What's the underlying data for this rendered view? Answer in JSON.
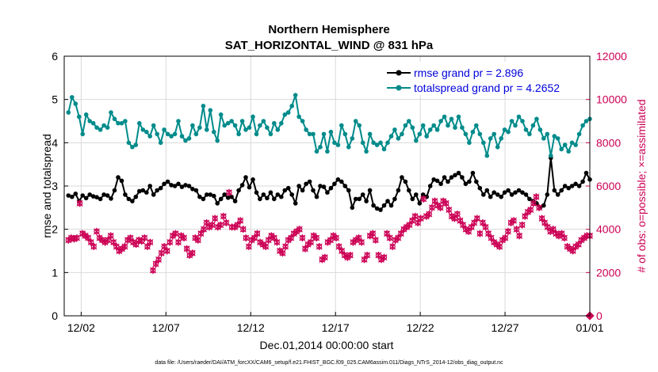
{
  "chart_data": {
    "type": "line",
    "title": "Northern Hemisphere",
    "subtitle": "SAT_HORIZONTAL_WIND @ 831 hPa",
    "xlabel": "Dec.01,2014 00:00:00 start",
    "ylabel": "rmse and totalspread",
    "ylabel_right": "# of obs: o=possible; ×=assimilated",
    "footnote": "data file: /Users/raeder/DAI/ATM_forcXX/CAM6_setup/f.e21.FHIST_BGC.f09_025.CAM6assim.011/Diags_NTrS_2014-12/obs_diag_output.nc",
    "x_ticks": [
      {
        "pos": 1,
        "label": "12/02"
      },
      {
        "pos": 6,
        "label": "12/07"
      },
      {
        "pos": 11,
        "label": "12/12"
      },
      {
        "pos": 16,
        "label": "12/17"
      },
      {
        "pos": 21,
        "label": "12/22"
      },
      {
        "pos": 26,
        "label": "12/27"
      },
      {
        "pos": 31,
        "label": "01/01"
      }
    ],
    "xlim": [
      0,
      31
    ],
    "ylim": [
      0,
      6
    ],
    "y_ticks": [
      "0",
      "1",
      "2",
      "3",
      "4",
      "5",
      "6"
    ],
    "ylim_right": [
      0,
      12000
    ],
    "y_ticks_right": [
      "0",
      "2000",
      "4000",
      "6000",
      "8000",
      "10000",
      "12000"
    ],
    "legend_position": "top-right",
    "series": [
      {
        "name": "rmse grand pr = 2.896",
        "color": "#000000",
        "axis": "left",
        "values": [
          2.78,
          2.75,
          2.82,
          2.65,
          2.78,
          2.72,
          2.8,
          2.76,
          2.74,
          2.7,
          2.8,
          2.78,
          2.71,
          2.9,
          3.2,
          3.12,
          2.8,
          2.7,
          2.65,
          2.75,
          2.88,
          2.9,
          2.85,
          3.0,
          2.8,
          2.9,
          2.95,
          3.05,
          3.1,
          3.02,
          3.0,
          3.05,
          2.98,
          3.02,
          3.0,
          2.93,
          2.9,
          2.75,
          2.7,
          2.8,
          2.8,
          2.77,
          2.6,
          2.7,
          2.8,
          2.73,
          2.75,
          2.65,
          2.9,
          3.02,
          3.2,
          2.97,
          3.15,
          2.85,
          2.7,
          2.8,
          2.72,
          2.85,
          2.7,
          2.8,
          2.75,
          2.9,
          2.95,
          2.8,
          2.6,
          3.0,
          2.9,
          3.05,
          3.1,
          2.9,
          2.75,
          3.0,
          2.98,
          2.85,
          2.95,
          3.05,
          3.15,
          3.1,
          3.0,
          2.9,
          2.5,
          2.7,
          2.7,
          2.8,
          2.65,
          2.9,
          2.55,
          2.48,
          2.45,
          2.55,
          2.65,
          2.55,
          2.7,
          2.9,
          3.2,
          3.1,
          2.9,
          2.7,
          2.8,
          2.6,
          2.8,
          2.75,
          3.0,
          3.15,
          3.12,
          3.05,
          3.2,
          3.1,
          3.2,
          3.25,
          3.3,
          3.2,
          3.05,
          3.1,
          3.3,
          3.1,
          2.95,
          2.8,
          2.9,
          2.75,
          2.85,
          2.8,
          2.75,
          2.85,
          2.9,
          2.8,
          2.85,
          2.9,
          2.85,
          2.8,
          2.7,
          2.65,
          2.6,
          2.5,
          2.55,
          2.8,
          3.65,
          2.9,
          2.8,
          2.9,
          3.0,
          2.95,
          3.0,
          3.05,
          3.0,
          3.1,
          3.3,
          3.15
        ]
      },
      {
        "name": "totalspread grand pr = 4.2652",
        "color": "#008b8b",
        "axis": "left",
        "values": [
          4.7,
          5.05,
          4.9,
          4.6,
          4.2,
          4.65,
          4.5,
          4.45,
          4.35,
          4.3,
          4.4,
          4.35,
          4.7,
          4.55,
          4.45,
          4.45,
          4.5,
          4.0,
          3.9,
          3.95,
          4.45,
          4.3,
          4.25,
          4.15,
          4.4,
          4.2,
          4.0,
          4.3,
          4.2,
          4.15,
          4.2,
          4.5,
          4.15,
          4.05,
          4.1,
          4.4,
          4.2,
          4.35,
          4.85,
          4.3,
          4.75,
          4.25,
          4.05,
          4.65,
          4.4,
          4.45,
          4.5,
          4.4,
          4.2,
          4.5,
          4.3,
          4.35,
          4.6,
          4.2,
          4.4,
          4.5,
          4.35,
          4.2,
          4.45,
          4.3,
          4.45,
          4.65,
          4.7,
          4.85,
          5.1,
          4.6,
          4.5,
          4.3,
          4.2,
          4.2,
          3.8,
          3.9,
          4.2,
          3.8,
          4.25,
          4.0,
          3.95,
          4.4,
          4.2,
          3.9,
          4.1,
          4.5,
          4.4,
          4.0,
          3.8,
          4.2,
          4.0,
          3.95,
          4.0,
          3.85,
          4.0,
          4.15,
          4.3,
          4.1,
          4.2,
          4.4,
          4.5,
          4.35,
          4.05,
          4.2,
          4.4,
          4.15,
          4.3,
          4.4,
          4.3,
          4.5,
          4.6,
          4.4,
          4.55,
          4.35,
          4.6,
          4.35,
          4.2,
          4.0,
          4.25,
          4.4,
          4.2,
          4.0,
          3.7,
          4.1,
          4.2,
          3.9,
          4.1,
          4.3,
          4.25,
          4.5,
          4.4,
          4.6,
          4.5,
          4.3,
          4.2,
          4.4,
          4.55,
          4.3,
          4.1,
          4.2,
          3.7,
          4.15,
          4.1,
          3.85,
          3.95,
          3.8,
          4.0,
          3.95,
          4.2,
          4.4,
          4.5,
          4.55
        ]
      },
      {
        "name": "possible",
        "color": "#cc0055",
        "marker": "o",
        "axis": "right",
        "values": [
          3500,
          3600,
          3550,
          3600,
          5200,
          3800,
          3700,
          3600,
          3400,
          3200,
          3900,
          3600,
          3500,
          3400,
          3500,
          3700,
          3400,
          3200,
          3000,
          3100,
          3200,
          3500,
          3600,
          3400,
          3300,
          3500,
          3450,
          3600,
          3200,
          3400,
          2100,
          2400,
          2600,
          2900,
          3200,
          3000,
          3400,
          3700,
          3800,
          3400,
          3700,
          3600,
          3100,
          2800,
          2900,
          3600,
          3500,
          3800,
          4000,
          4300,
          4100,
          4200,
          4500,
          4100,
          4200,
          4600,
          4300,
          5700,
          4100,
          4100,
          4200,
          4400,
          4000,
          3600,
          3200,
          3500,
          3600,
          3800,
          3400,
          3300,
          3200,
          3500,
          3700,
          3600,
          3400,
          3000,
          2900,
          3200,
          3500,
          3600,
          3800,
          3900,
          4000,
          3600,
          3100,
          3300,
          3400,
          3700,
          3600,
          3200,
          2600,
          2700,
          3400,
          3500,
          3700,
          3600,
          3200,
          3000,
          2800,
          2700,
          2800,
          3400,
          3500,
          3600,
          3400,
          2600,
          2800,
          3700,
          3800,
          3500,
          2800,
          2600,
          2700,
          3800,
          3600,
          3200,
          3500,
          3600,
          3800,
          4000,
          4100,
          4200,
          4400,
          4600,
          4300,
          4500,
          5400,
          4600,
          4700,
          5000,
          5300,
          5100,
          5000,
          5300,
          5200,
          4900,
          4600,
          4500,
          4700,
          4400,
          4200,
          4000,
          3900,
          4100,
          4300,
          4500,
          3800,
          4300,
          4100,
          3800,
          3600,
          3400,
          3300,
          3200,
          3500,
          3600,
          3900,
          4300,
          4400,
          4000,
          3700,
          4200,
          4600,
          4800,
          4900,
          5200,
          5500,
          5000,
          4500,
          4300,
          4100,
          3900,
          4000,
          3800,
          3700,
          3800,
          3600,
          3200,
          3100,
          3000,
          3200,
          3300,
          3500,
          3600,
          3700,
          3700
        ]
      }
    ]
  }
}
